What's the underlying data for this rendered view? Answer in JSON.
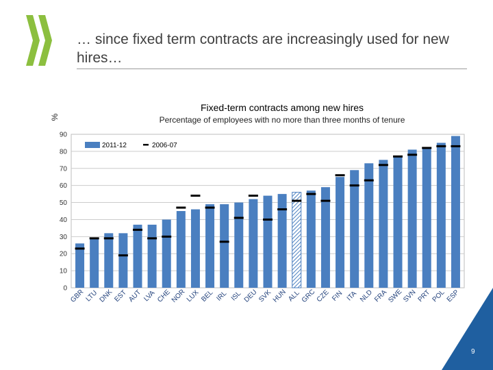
{
  "slide": {
    "headline": "… since fixed term contracts are increasingly used for new hires…",
    "page_number": "9",
    "accent_color": "#1f5fa0",
    "logo_color": "#8cbf3f"
  },
  "chart_data": {
    "type": "bar",
    "title": "Fixed-term contracts among new hires",
    "subtitle": "Percentage of employees with no more than three months of tenure",
    "unit_marker": "%",
    "categories": [
      "GBR",
      "LTU",
      "DNK",
      "EST",
      "AUT",
      "LVA",
      "CHE",
      "NOR",
      "LUX",
      "BEL",
      "IRL",
      "ISL",
      "DEU",
      "SVK",
      "HUN",
      "ALL",
      "GRC",
      "CZE",
      "FIN",
      "ITA",
      "NLD",
      "FRA",
      "SWE",
      "SVN",
      "PRT",
      "POL",
      "ESP"
    ],
    "series": [
      {
        "name": "2011-12",
        "type": "bar",
        "color": "#4a7fc0",
        "values": [
          26,
          29,
          32,
          32,
          37,
          37,
          40,
          45,
          46,
          49,
          49,
          50,
          52,
          54,
          55,
          56,
          57,
          59,
          65,
          69,
          73,
          75,
          77,
          81,
          82,
          85,
          89
        ]
      },
      {
        "name": "2006-07",
        "type": "marker",
        "color": "#000000",
        "values": [
          23,
          29,
          29,
          19,
          34,
          29,
          30,
          47,
          54,
          47,
          27,
          41,
          54,
          40,
          46,
          51,
          55,
          51,
          66,
          60,
          63,
          72,
          77,
          78,
          82,
          83,
          83
        ]
      }
    ],
    "hatched_category": "ALL",
    "ylim": [
      0,
      90
    ],
    "yticks": [
      0,
      10,
      20,
      30,
      40,
      50,
      60,
      70,
      80,
      90
    ],
    "grid": true,
    "legend": "top-left"
  }
}
